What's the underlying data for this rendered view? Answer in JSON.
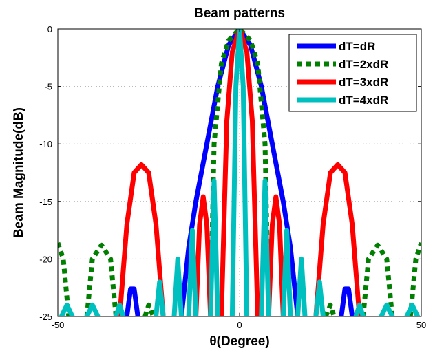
{
  "chart_data": {
    "type": "line",
    "title": "Beam patterns",
    "xlabel": "θ(Degree)",
    "ylabel": "Beam Magnitude(dB)",
    "xlim": [
      -50,
      50
    ],
    "ylim": [
      -25,
      0
    ],
    "x_ticks": [
      -50,
      0,
      50
    ],
    "y_ticks": [
      0,
      -5,
      -10,
      -15,
      -20,
      -25
    ],
    "grid": true,
    "legend_position": "top-right",
    "series": [
      {
        "name": "dT=dR",
        "color": "#0000ff",
        "style": "solid",
        "points": [
          [
            -31,
            -25
          ],
          [
            -30,
            -22.6
          ],
          [
            -29,
            -22.6
          ],
          [
            -28,
            -25
          ],
          null,
          [
            -16,
            -25
          ],
          [
            -14,
            -19
          ],
          [
            -12,
            -15
          ],
          [
            -9,
            -10
          ],
          [
            -6,
            -5
          ],
          [
            -3,
            -1.4
          ],
          [
            0,
            0
          ],
          [
            3,
            -1.4
          ],
          [
            6,
            -5
          ],
          [
            9,
            -10
          ],
          [
            12,
            -15
          ],
          [
            14,
            -19
          ],
          [
            16,
            -25
          ],
          null,
          [
            28,
            -25
          ],
          [
            29,
            -22.6
          ],
          [
            30,
            -22.6
          ],
          [
            31,
            -25
          ]
        ]
      },
      {
        "name": "dT=2xdR",
        "color": "#007f00",
        "style": "dashed",
        "points": [
          [
            -50,
            -18.6
          ],
          [
            -48.5,
            -20
          ],
          [
            -47,
            -25
          ],
          null,
          [
            -42,
            -25
          ],
          [
            -40.5,
            -20
          ],
          [
            -38,
            -18.8
          ],
          [
            -35.5,
            -20
          ],
          [
            -34,
            -25
          ],
          null,
          [
            -26,
            -25
          ],
          [
            -25,
            -24
          ],
          [
            -23.7,
            -25
          ],
          null,
          [
            -8,
            -25
          ],
          [
            -7,
            -10
          ],
          [
            -5,
            -3
          ],
          [
            -3,
            -1
          ],
          [
            0,
            0
          ],
          [
            3,
            -1
          ],
          [
            5,
            -3
          ],
          [
            7,
            -10
          ],
          [
            8,
            -25
          ],
          null,
          [
            23.7,
            -25
          ],
          [
            25,
            -24
          ],
          [
            26,
            -25
          ],
          null,
          [
            34,
            -25
          ],
          [
            35.5,
            -20
          ],
          [
            38,
            -18.8
          ],
          [
            40.5,
            -20
          ],
          [
            42,
            -25
          ],
          null,
          [
            47,
            -25
          ],
          [
            48.5,
            -20
          ],
          [
            50,
            -18.6
          ]
        ]
      },
      {
        "name": "dT=3xdR",
        "color": "#ff0000",
        "style": "solid",
        "points": [
          [
            -33,
            -25
          ],
          [
            -31,
            -17
          ],
          [
            -29,
            -12.5
          ],
          [
            -27,
            -11.8
          ],
          [
            -25,
            -12.5
          ],
          [
            -23,
            -17
          ],
          [
            -21,
            -25
          ],
          null,
          [
            -12,
            -25
          ],
          [
            -11,
            -17
          ],
          [
            -10,
            -14.6
          ],
          [
            -9,
            -17
          ],
          [
            -8,
            -25
          ],
          null,
          [
            -5,
            -25
          ],
          [
            -3.5,
            -8
          ],
          [
            -2,
            -2
          ],
          [
            0,
            0
          ],
          [
            2,
            -2
          ],
          [
            3.5,
            -8
          ],
          [
            5,
            -25
          ],
          null,
          [
            8,
            -25
          ],
          [
            9,
            -17
          ],
          [
            10,
            -14.6
          ],
          [
            11,
            -17
          ],
          [
            12,
            -25
          ],
          null,
          [
            21,
            -25
          ],
          [
            23,
            -17
          ],
          [
            25,
            -12.5
          ],
          [
            27,
            -11.8
          ],
          [
            29,
            -12.5
          ],
          [
            31,
            -17
          ],
          [
            33,
            -25
          ]
        ]
      },
      {
        "name": "dT=4xdR",
        "color": "#00bfbf",
        "style": "solid",
        "points": [
          [
            -49,
            -25
          ],
          [
            -47.5,
            -24
          ],
          [
            -46,
            -25
          ],
          null,
          [
            -42,
            -25
          ],
          [
            -40.5,
            -24
          ],
          [
            -39,
            -25
          ],
          null,
          [
            -34,
            -25
          ],
          [
            -33,
            -24
          ],
          [
            -32,
            -25
          ],
          null,
          [
            -23,
            -25
          ],
          [
            -22,
            -22
          ],
          [
            -21,
            -25
          ],
          null,
          [
            -18,
            -25
          ],
          [
            -17,
            -20
          ],
          [
            -16,
            -25
          ],
          null,
          [
            -14,
            -25
          ],
          [
            -13,
            -17.5
          ],
          [
            -12,
            -25
          ],
          null,
          [
            -8,
            -25
          ],
          [
            -7,
            -13.2
          ],
          [
            -6,
            -25
          ],
          null,
          [
            -2,
            -25
          ],
          [
            -1,
            -5
          ],
          [
            0,
            0
          ],
          [
            1,
            -5
          ],
          [
            2,
            -25
          ],
          null,
          [
            6,
            -25
          ],
          [
            7,
            -13.2
          ],
          [
            8,
            -25
          ],
          null,
          [
            12,
            -25
          ],
          [
            13,
            -17.5
          ],
          [
            14,
            -25
          ],
          null,
          [
            16,
            -25
          ],
          [
            17,
            -20
          ],
          [
            18,
            -25
          ],
          null,
          [
            21,
            -25
          ],
          [
            22,
            -22
          ],
          [
            23,
            -25
          ],
          null,
          [
            32,
            -25
          ],
          [
            33,
            -24
          ],
          [
            34,
            -25
          ],
          null,
          [
            39,
            -25
          ],
          [
            40.5,
            -24
          ],
          [
            42,
            -25
          ],
          null,
          [
            46,
            -25
          ],
          [
            47.5,
            -24
          ],
          [
            49,
            -25
          ]
        ]
      }
    ]
  }
}
